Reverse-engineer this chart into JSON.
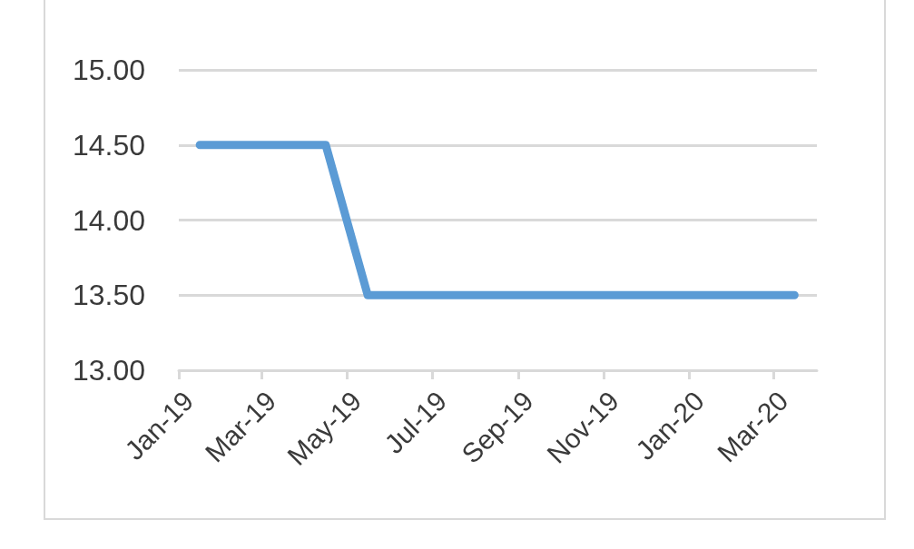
{
  "chart_data": {
    "type": "line",
    "x": [
      "2019-01-16",
      "2019-02-15",
      "2019-03-16",
      "2019-04-16",
      "2019-05-16",
      "2019-06-16",
      "2019-07-16",
      "2019-08-16",
      "2019-09-16",
      "2019-10-16",
      "2019-11-16",
      "2019-12-16",
      "2020-01-16",
      "2020-02-15",
      "2020-03-16"
    ],
    "series": [
      {
        "color": "#5b9bd5",
        "values": [
          14.5,
          14.5,
          14.5,
          14.5,
          13.5,
          13.5,
          13.5,
          13.5,
          13.5,
          13.5,
          13.5,
          13.5,
          13.5,
          13.5,
          13.5
        ]
      }
    ],
    "xlim": [
      "2019-01",
      "2020-04"
    ],
    "xticks": [
      {
        "value": "2019-01",
        "label": "Jan-19"
      },
      {
        "value": "2019-03",
        "label": "Mar-19"
      },
      {
        "value": "2019-05",
        "label": "May-19"
      },
      {
        "value": "2019-07",
        "label": "Jul-19"
      },
      {
        "value": "2019-09",
        "label": "Sep-19"
      },
      {
        "value": "2019-11",
        "label": "Nov-19"
      },
      {
        "value": "2020-01",
        "label": "Jan-20"
      },
      {
        "value": "2020-03",
        "label": "Mar-20"
      }
    ],
    "ylim": [
      13,
      15
    ],
    "yticks": [
      {
        "value": 13,
        "label": "13.00"
      },
      {
        "value": 13.5,
        "label": "13.50"
      },
      {
        "value": 14,
        "label": "14.00"
      },
      {
        "value": 14.5,
        "label": "14.50"
      },
      {
        "value": 15,
        "label": "15.00"
      }
    ],
    "grid": "y",
    "marker": "none",
    "line_style": "solid"
  }
}
